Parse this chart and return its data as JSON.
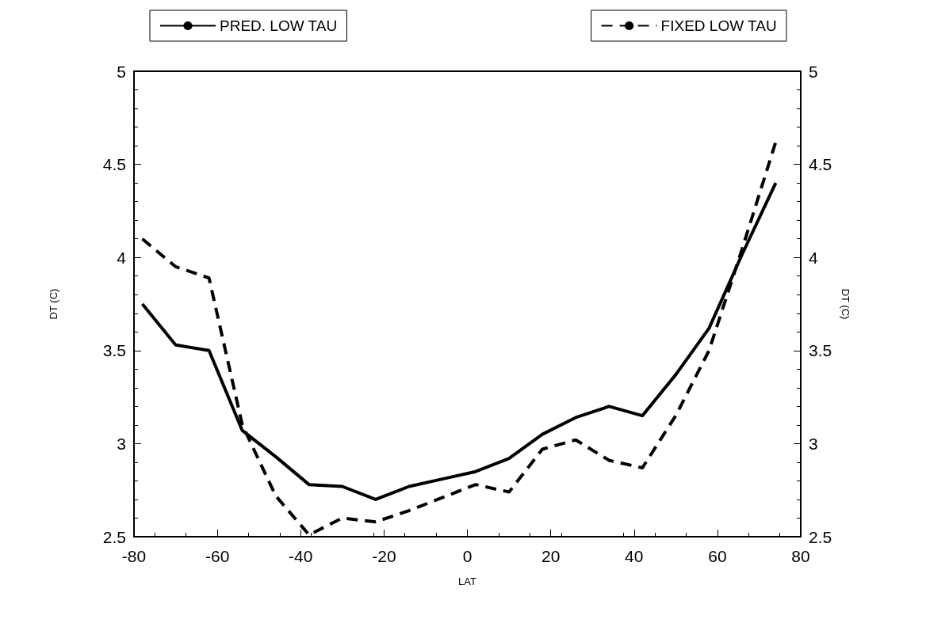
{
  "chart_data": {
    "type": "line",
    "xlabel": "LAT",
    "ylabel": "DT (C)",
    "y2label": "DT (C)",
    "x": [
      -78,
      -70,
      -62,
      -54,
      -46,
      -38,
      -30,
      -22,
      -14,
      -6,
      2,
      10,
      18,
      26,
      34,
      42,
      50,
      58,
      66,
      74
    ],
    "series": [
      {
        "name": "PRED. LOW TAU",
        "color": "#000000",
        "line_style": "solid",
        "values": [
          3.75,
          3.53,
          3.5,
          3.07,
          2.93,
          2.78,
          2.77,
          2.7,
          2.77,
          2.81,
          2.85,
          2.92,
          3.05,
          3.14,
          3.2,
          3.15,
          3.37,
          3.62,
          4.02,
          4.4
        ]
      },
      {
        "name": "FIXED LOW TAU",
        "color": "#000000",
        "line_style": "dashed",
        "values": [
          4.1,
          3.95,
          3.89,
          3.1,
          2.72,
          2.51,
          2.6,
          2.58,
          2.64,
          2.71,
          2.78,
          2.74,
          2.97,
          3.02,
          2.91,
          2.87,
          3.15,
          3.5,
          4.05,
          4.62
        ]
      }
    ],
    "xlim": [
      -80,
      80
    ],
    "xticks": [
      -80,
      -60,
      -40,
      -20,
      0,
      20,
      40,
      60,
      80
    ],
    "ylim": [
      2.5,
      5
    ],
    "yticks": [
      2.5,
      3,
      3.5,
      4,
      4.5,
      5
    ],
    "y2lim": [
      2.5,
      5
    ],
    "y2ticks": [
      2.5,
      3,
      3.5,
      4,
      4.5,
      5
    ],
    "grid": false,
    "legend": "top",
    "marker": "none"
  }
}
